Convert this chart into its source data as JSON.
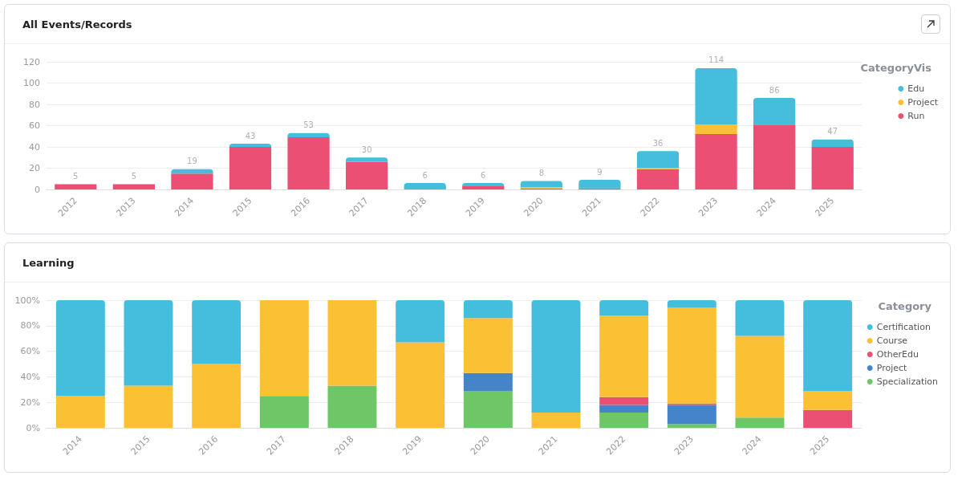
{
  "chart_data": [
    {
      "type": "bar",
      "title": "All Events/Records",
      "stacked": true,
      "legend_title": "CategoryVis",
      "legend": "right",
      "grid": "y",
      "categories": [
        "2012",
        "2013",
        "2014",
        "2015",
        "2016",
        "2017",
        "2018",
        "2019",
        "2020",
        "2021",
        "2022",
        "2023",
        "2024",
        "2025"
      ],
      "series": [
        {
          "name": "Run",
          "color": "#eb5074",
          "values": [
            5,
            5,
            15,
            40,
            49,
            26,
            0,
            3,
            1,
            1,
            19,
            52,
            61,
            40
          ]
        },
        {
          "name": "Project",
          "color": "#f9c133",
          "values": [
            0,
            0,
            0,
            0,
            0,
            0,
            0,
            0,
            1,
            0,
            1,
            9,
            0,
            0
          ]
        },
        {
          "name": "Edu",
          "color": "#45bddc",
          "values": [
            0,
            0,
            4,
            3,
            4,
            4,
            6,
            3,
            6,
            8,
            16,
            53,
            25,
            7
          ]
        }
      ],
      "totals": [
        "5",
        "5",
        "19",
        "43",
        "53",
        "30",
        "6",
        "6",
        "8",
        "9",
        "36",
        "114",
        "86",
        "47"
      ],
      "ylim": [
        0,
        120
      ],
      "yticks": [
        0,
        20,
        40,
        60,
        80,
        100,
        120
      ]
    },
    {
      "type": "bar",
      "title": "Learning",
      "stacked": true,
      "legend_title": "Category",
      "legend": "right",
      "grid": "y",
      "categories": [
        "2014",
        "2015",
        "2016",
        "2017",
        "2018",
        "2019",
        "2020",
        "2021",
        "2022",
        "2023",
        "2024",
        "2025"
      ],
      "series": [
        {
          "name": "Specialization",
          "color": "#6fc666",
          "values": [
            0,
            0,
            0,
            25,
            33,
            0,
            29,
            0,
            12,
            3,
            8,
            0
          ]
        },
        {
          "name": "Project",
          "color": "#4584cb",
          "values": [
            0,
            0,
            0,
            0,
            0,
            0,
            14,
            0,
            6,
            15,
            0,
            0
          ]
        },
        {
          "name": "OtherEdu",
          "color": "#eb5074",
          "values": [
            0,
            0,
            0,
            0,
            0,
            0,
            0,
            0,
            6,
            1,
            0,
            14
          ]
        },
        {
          "name": "Course",
          "color": "#f9c133",
          "values": [
            25,
            33,
            50,
            75,
            67,
            67,
            43,
            12,
            64,
            75,
            64,
            15
          ]
        },
        {
          "name": "Certification",
          "color": "#45bddc",
          "values": [
            75,
            67,
            50,
            0,
            0,
            33,
            14,
            88,
            12,
            6,
            28,
            71
          ]
        }
      ],
      "ylim": [
        0,
        100
      ],
      "yticks": [
        {
          "value": 0,
          "label": "0%"
        },
        {
          "value": 20,
          "label": "20%"
        },
        {
          "value": 40,
          "label": "40%"
        },
        {
          "value": 60,
          "label": "60%"
        },
        {
          "value": 80,
          "label": "80%"
        },
        {
          "value": 100,
          "label": "100%"
        }
      ]
    }
  ]
}
